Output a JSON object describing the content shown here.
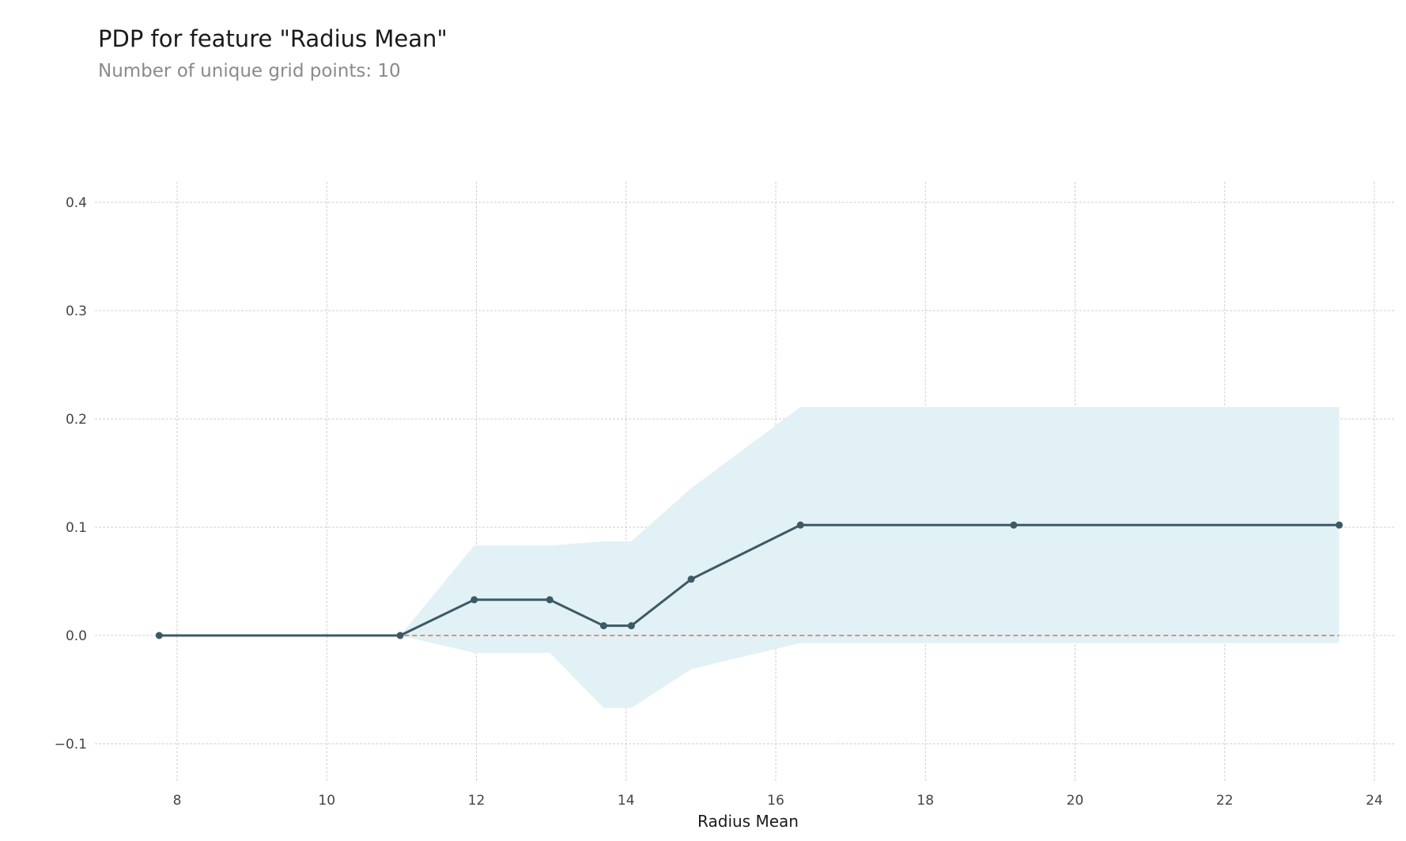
{
  "chart_data": {
    "type": "line",
    "title": "PDP for feature \"Radius Mean\"",
    "subtitle": "Number of unique grid points: 10",
    "xlabel": "Radius Mean",
    "ylabel": "",
    "xlim": [
      7.0,
      24.2
    ],
    "ylim": [
      -0.12,
      0.42
    ],
    "x_ticks": [
      8,
      10,
      12,
      14,
      16,
      18,
      20,
      22,
      24
    ],
    "x_tick_labels": [
      "8",
      "10",
      "12",
      "14",
      "16",
      "18",
      "20",
      "22",
      "24"
    ],
    "y_ticks": [
      -0.1,
      0.0,
      0.1,
      0.2,
      0.3,
      0.4
    ],
    "y_tick_labels": [
      "−0.1",
      "0.0",
      "0.1",
      "0.2",
      "0.3",
      "0.4"
    ],
    "grid": true,
    "series": [
      {
        "x": [
          7.76,
          10.98,
          11.97,
          12.98,
          13.7,
          14.07,
          14.87,
          16.33,
          19.18,
          23.53
        ],
        "y": [
          0.0,
          0.0,
          0.033,
          0.033,
          0.009,
          0.009,
          0.052,
          0.102,
          0.102,
          0.102
        ],
        "color": "#3c5a66"
      }
    ],
    "confidence_band": {
      "upper": [
        0.0,
        0.0,
        0.083,
        0.083,
        0.087,
        0.087,
        0.136,
        0.211,
        0.211,
        0.211
      ],
      "lower": [
        0.0,
        0.0,
        -0.016,
        -0.016,
        -0.067,
        -0.067,
        -0.031,
        -0.007,
        -0.007,
        -0.007
      ],
      "color": "#e2f1f5"
    },
    "reference_line": {
      "y": 0.0,
      "style": "dashed",
      "color": "#d9714f"
    }
  }
}
